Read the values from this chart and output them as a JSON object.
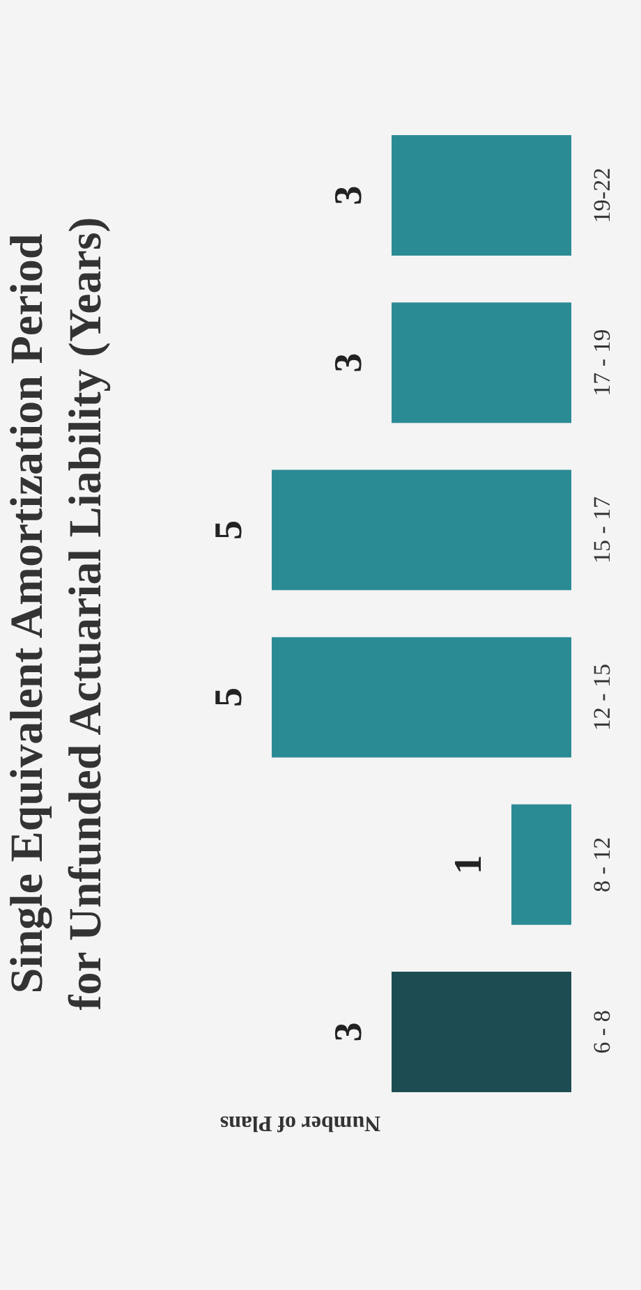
{
  "chart_data": {
    "type": "bar",
    "orientation": "horizontal",
    "title": [
      "Single Equivalent Amortization Period",
      "for Unfunded Actuarial Liability  (Years)"
    ],
    "xlabel": "Number of Plans",
    "categories": [
      "19-22",
      "17 - 19",
      "15 - 17",
      "12 - 15",
      "8 - 12",
      "6 - 8"
    ],
    "values": [
      3,
      3,
      5,
      5,
      1,
      3
    ],
    "colors": [
      "#2b8b95",
      "#2b8b95",
      "#2b8b95",
      "#2b8b95",
      "#2b8b95",
      "#1d4d53"
    ],
    "data_labels": true
  }
}
